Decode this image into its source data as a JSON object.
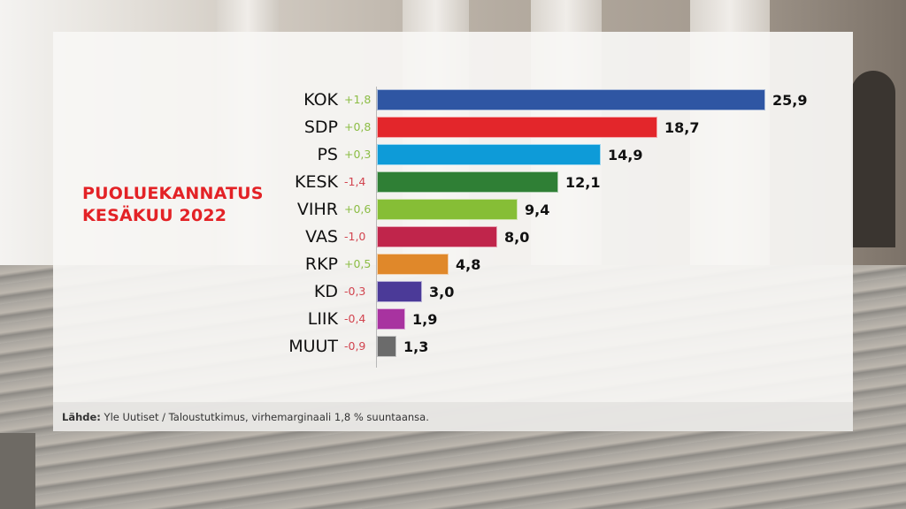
{
  "title": {
    "line1": "PUOLUEKANNATUS",
    "line2": "KESÄKUU 2022",
    "color": "#e32226"
  },
  "source": {
    "label": "Lähde:",
    "text": " Yle Uutiset / Taloustutkimus, virhemarginaali 1,8 % suuntaansa."
  },
  "colors": {
    "positive_change": "#8cbd45",
    "negative_change": "#d2444f"
  },
  "chart_data": {
    "type": "bar",
    "orientation": "horizontal",
    "title": "PUOLUEKANNATUS KESÄKUU 2022",
    "xlabel": "",
    "ylabel": "",
    "grid": false,
    "legend": null,
    "categories": [
      "KOK",
      "SDP",
      "PS",
      "KESK",
      "VIHR",
      "VAS",
      "RKP",
      "KD",
      "LIIK",
      "MUUT"
    ],
    "values": [
      25.9,
      18.7,
      14.9,
      12.1,
      9.4,
      8.0,
      4.8,
      3.0,
      1.9,
      1.3
    ],
    "value_labels": [
      "25,9",
      "18,7",
      "14,9",
      "12,1",
      "9,4",
      "8,0",
      "4,8",
      "3,0",
      "1,9",
      "1,3"
    ],
    "changes": [
      1.8,
      0.8,
      0.3,
      -1.4,
      0.6,
      -1.0,
      0.5,
      -0.3,
      -0.4,
      -0.9
    ],
    "change_labels": [
      "+1,8",
      "+0,8",
      "+0,3",
      "-1,4",
      "+0,6",
      "-1,0",
      "+0,5",
      "-0,3",
      "-0,4",
      "-0,9"
    ],
    "bar_colors": [
      "#2f56a3",
      "#e3262b",
      "#0e9bd8",
      "#2f7f35",
      "#86be36",
      "#c0254b",
      "#e0882a",
      "#4b3a98",
      "#a833a0",
      "#6b6b6b"
    ],
    "footnote": "Lähde: Yle Uutiset / Taloustutkimus, virhemarginaali 1,8 % suuntaansa."
  }
}
